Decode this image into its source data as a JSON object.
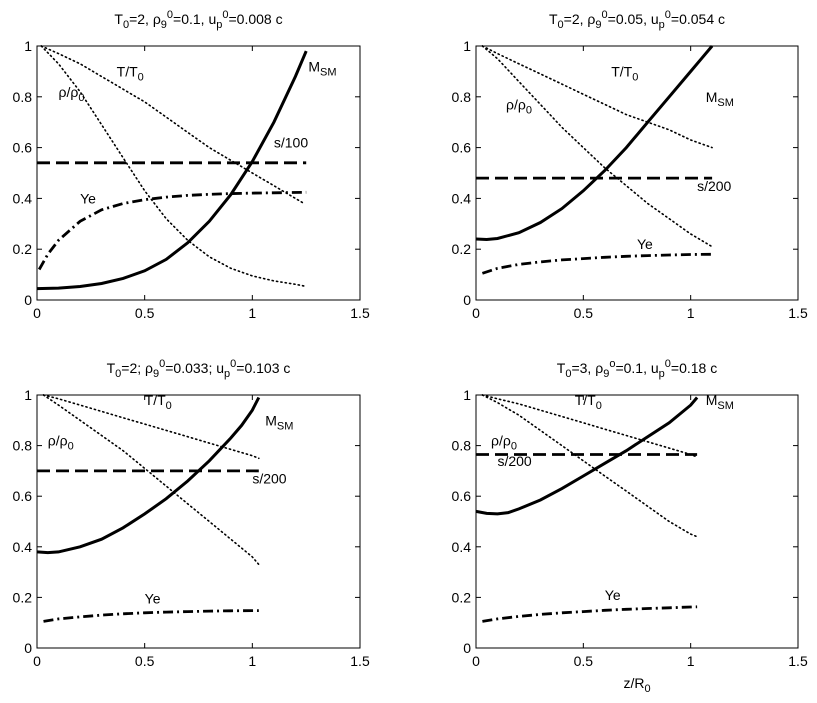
{
  "figure": {
    "xlabel": "z/R",
    "xlabel_sub": "0"
  },
  "chart_data": [
    {
      "type": "line",
      "title_parts": [
        {
          "t": "T"
        },
        {
          "t": "0",
          "sub": true
        },
        {
          "t": "=2,  ρ"
        },
        {
          "t": "9",
          "sub": true
        },
        {
          "t": "0",
          "sup": true
        },
        {
          "t": "=0.1,  u"
        },
        {
          "t": "p",
          "sub": true
        },
        {
          "t": "0",
          "sup": true
        },
        {
          "t": "=0.008 c"
        }
      ],
      "xlim": [
        0,
        1.5
      ],
      "ylim": [
        0,
        1
      ],
      "xticks": [
        "0",
        "0.5",
        "1",
        "1.5"
      ],
      "yticks": [
        "0",
        "0.2",
        "0.4",
        "0.6",
        "0.8",
        "1"
      ],
      "series": [
        {
          "name": "M_SM",
          "style": "solid",
          "x": [
            0,
            0.1,
            0.2,
            0.3,
            0.4,
            0.5,
            0.6,
            0.7,
            0.8,
            0.9,
            1.0,
            1.1,
            1.2,
            1.25
          ],
          "y": [
            0.045,
            0.047,
            0.053,
            0.065,
            0.085,
            0.115,
            0.16,
            0.225,
            0.31,
            0.415,
            0.545,
            0.7,
            0.88,
            0.98
          ]
        },
        {
          "name": "s/100",
          "style": "dashed",
          "x": [
            0,
            1.25
          ],
          "y": [
            0.54,
            0.54
          ]
        },
        {
          "name": "Ye",
          "style": "dashdot",
          "x": [
            0.01,
            0.05,
            0.1,
            0.2,
            0.3,
            0.4,
            0.5,
            0.6,
            0.7,
            0.8,
            0.9,
            1.0,
            1.1,
            1.25
          ],
          "y": [
            0.12,
            0.18,
            0.235,
            0.31,
            0.355,
            0.38,
            0.395,
            0.405,
            0.412,
            0.416,
            0.419,
            0.421,
            0.422,
            0.424
          ]
        },
        {
          "name": "T/T0",
          "style": "dotted",
          "x": [
            0.02,
            0.1,
            0.2,
            0.3,
            0.4,
            0.5,
            0.6,
            0.7,
            0.8,
            0.9,
            1.0,
            1.1,
            1.2,
            1.24
          ],
          "y": [
            1.0,
            0.97,
            0.93,
            0.88,
            0.83,
            0.78,
            0.72,
            0.66,
            0.6,
            0.55,
            0.5,
            0.45,
            0.4,
            0.38
          ]
        },
        {
          "name": "rho/rho0",
          "style": "dotted",
          "x": [
            0.02,
            0.1,
            0.2,
            0.3,
            0.4,
            0.5,
            0.6,
            0.7,
            0.8,
            0.9,
            1.0,
            1.1,
            1.2,
            1.24
          ],
          "y": [
            1.0,
            0.93,
            0.82,
            0.69,
            0.56,
            0.43,
            0.32,
            0.235,
            0.17,
            0.125,
            0.095,
            0.075,
            0.062,
            0.055
          ]
        }
      ],
      "annotations": [
        {
          "parts": [
            {
              "t": "M"
            },
            {
              "t": "SM",
              "sub": true
            }
          ],
          "x": 1.26,
          "y": 0.9
        },
        {
          "parts": [
            {
              "t": "T/T"
            },
            {
              "t": "0",
              "sub": true
            }
          ],
          "x": 0.37,
          "y": 0.88
        },
        {
          "parts": [
            {
              "t": "s/100"
            }
          ],
          "x": 1.1,
          "y": 0.6
        },
        {
          "parts": [
            {
              "t": "Ye"
            }
          ],
          "x": 0.2,
          "y": 0.38
        }
      ]
    },
    {
      "type": "line",
      "title_parts": [
        {
          "t": "T"
        },
        {
          "t": "0",
          "sub": true
        },
        {
          "t": "=2,  ρ"
        },
        {
          "t": "9",
          "sub": true
        },
        {
          "t": "0",
          "sup": true
        },
        {
          "t": "=0.05,  u"
        },
        {
          "t": "p",
          "sub": true
        },
        {
          "t": "0",
          "sup": true
        },
        {
          "t": "=0.054 c"
        }
      ],
      "xlim": [
        0,
        1.5
      ],
      "ylim": [
        0,
        1
      ],
      "xticks": [
        "0",
        "0.5",
        "1",
        "1.5"
      ],
      "yticks": [
        "0",
        "0.2",
        "0.4",
        "0.6",
        "0.8",
        "1"
      ],
      "series": [
        {
          "name": "M_SM",
          "style": "solid",
          "x": [
            0,
            0.05,
            0.1,
            0.2,
            0.3,
            0.4,
            0.5,
            0.6,
            0.7,
            0.8,
            0.9,
            1.0,
            1.05,
            1.1
          ],
          "y": [
            0.24,
            0.238,
            0.242,
            0.265,
            0.305,
            0.36,
            0.43,
            0.51,
            0.6,
            0.7,
            0.8,
            0.9,
            0.95,
            1.0
          ]
        },
        {
          "name": "s/200",
          "style": "dashed",
          "x": [
            0,
            1.1
          ],
          "y": [
            0.48,
            0.48
          ]
        },
        {
          "name": "Ye",
          "style": "dashdot",
          "x": [
            0.03,
            0.1,
            0.2,
            0.3,
            0.4,
            0.5,
            0.6,
            0.7,
            0.8,
            0.9,
            1.0,
            1.1
          ],
          "y": [
            0.105,
            0.125,
            0.14,
            0.15,
            0.158,
            0.163,
            0.168,
            0.172,
            0.175,
            0.177,
            0.179,
            0.18
          ]
        },
        {
          "name": "T/T0",
          "style": "dotted",
          "x": [
            0.03,
            0.1,
            0.2,
            0.3,
            0.4,
            0.5,
            0.6,
            0.7,
            0.8,
            0.9,
            1.0,
            1.1
          ],
          "y": [
            1.0,
            0.97,
            0.93,
            0.89,
            0.85,
            0.81,
            0.77,
            0.73,
            0.7,
            0.67,
            0.63,
            0.6
          ]
        },
        {
          "name": "rho/rho0",
          "style": "dotted",
          "x": [
            0.03,
            0.1,
            0.2,
            0.3,
            0.4,
            0.5,
            0.6,
            0.7,
            0.8,
            0.9,
            1.0,
            1.1
          ],
          "y": [
            1.0,
            0.95,
            0.86,
            0.77,
            0.68,
            0.6,
            0.52,
            0.45,
            0.38,
            0.32,
            0.26,
            0.21
          ]
        }
      ],
      "annotations": [
        {
          "parts": [
            {
              "t": "M"
            },
            {
              "t": "SM",
              "sub": true
            }
          ],
          "x": 1.07,
          "y": 0.78
        },
        {
          "parts": [
            {
              "t": "T/T"
            },
            {
              "t": "0",
              "sub": true
            }
          ],
          "x": 0.63,
          "y": 0.88
        },
        {
          "parts": [
            {
              "t": "s/200"
            }
          ],
          "x": 1.03,
          "y": 0.43
        },
        {
          "parts": [
            {
              "t": "Ye"
            }
          ],
          "x": 0.75,
          "y": 0.2
        }
      ]
    },
    {
      "type": "line",
      "title_parts": [
        {
          "t": "T"
        },
        {
          "t": "0",
          "sub": true
        },
        {
          "t": "=2;  ρ"
        },
        {
          "t": "9",
          "sub": true
        },
        {
          "t": "0",
          "sup": true
        },
        {
          "t": "=0.033;  u"
        },
        {
          "t": "p",
          "sub": true
        },
        {
          "t": "0",
          "sup": true
        },
        {
          "t": "=0.103 c"
        }
      ],
      "xlim": [
        0,
        1.5
      ],
      "ylim": [
        0,
        1
      ],
      "xticks": [
        "0",
        "0.5",
        "1",
        "1.5"
      ],
      "yticks": [
        "0",
        "0.2",
        "0.4",
        "0.6",
        "0.8",
        "1"
      ],
      "series": [
        {
          "name": "M_SM",
          "style": "solid",
          "x": [
            0,
            0.05,
            0.1,
            0.2,
            0.3,
            0.4,
            0.5,
            0.6,
            0.7,
            0.8,
            0.9,
            0.95,
            1.0,
            1.03
          ],
          "y": [
            0.38,
            0.377,
            0.38,
            0.4,
            0.43,
            0.475,
            0.53,
            0.59,
            0.66,
            0.74,
            0.83,
            0.88,
            0.94,
            0.99
          ]
        },
        {
          "name": "s/200",
          "style": "dashed",
          "x": [
            0,
            1.03
          ],
          "y": [
            0.7,
            0.7
          ]
        },
        {
          "name": "Ye",
          "style": "dashdot",
          "x": [
            0.03,
            0.1,
            0.2,
            0.3,
            0.4,
            0.5,
            0.6,
            0.7,
            0.8,
            0.9,
            1.0,
            1.03
          ],
          "y": [
            0.105,
            0.115,
            0.123,
            0.13,
            0.135,
            0.139,
            0.142,
            0.144,
            0.146,
            0.147,
            0.148,
            0.148
          ]
        },
        {
          "name": "T/T0",
          "style": "dotted",
          "x": [
            0.03,
            0.1,
            0.2,
            0.3,
            0.4,
            0.5,
            0.6,
            0.7,
            0.8,
            0.9,
            1.0,
            1.03
          ],
          "y": [
            1.0,
            0.985,
            0.96,
            0.935,
            0.91,
            0.885,
            0.86,
            0.835,
            0.81,
            0.785,
            0.76,
            0.75
          ]
        },
        {
          "name": "rho/rho0",
          "style": "dotted",
          "x": [
            0.03,
            0.1,
            0.2,
            0.3,
            0.4,
            0.5,
            0.6,
            0.7,
            0.8,
            0.9,
            1.0,
            1.03
          ],
          "y": [
            1.0,
            0.96,
            0.9,
            0.84,
            0.78,
            0.71,
            0.64,
            0.57,
            0.5,
            0.43,
            0.36,
            0.33
          ]
        }
      ],
      "annotations": [
        {
          "parts": [
            {
              "t": "M"
            },
            {
              "t": "SM",
              "sub": true
            }
          ],
          "x": 1.06,
          "y": 0.88
        },
        {
          "parts": [
            {
              "t": "T/T"
            },
            {
              "t": "0",
              "sub": true
            }
          ],
          "x": 0.5,
          "y": 0.96
        },
        {
          "parts": [
            {
              "t": "s/200"
            }
          ],
          "x": 1.0,
          "y": 0.65
        },
        {
          "parts": [
            {
              "t": "Ye"
            }
          ],
          "x": 0.5,
          "y": 0.175
        }
      ]
    },
    {
      "type": "line",
      "title_parts": [
        {
          "t": "T"
        },
        {
          "t": "0",
          "sub": true
        },
        {
          "t": "=3,  ρ"
        },
        {
          "t": "9",
          "sub": true
        },
        {
          "t": "o",
          "sup": true
        },
        {
          "t": "=0.1,  u"
        },
        {
          "t": "p",
          "sub": true
        },
        {
          "t": "0",
          "sup": true
        },
        {
          "t": "=0.18 c"
        }
      ],
      "xlim": [
        0,
        1.5
      ],
      "ylim": [
        0,
        1
      ],
      "xticks": [
        "0",
        "0.5",
        "1",
        "1.5"
      ],
      "yticks": [
        "0",
        "0.2",
        "0.4",
        "0.6",
        "0.8",
        "1"
      ],
      "series": [
        {
          "name": "M_SM",
          "style": "solid",
          "x": [
            0,
            0.05,
            0.1,
            0.15,
            0.2,
            0.3,
            0.4,
            0.5,
            0.6,
            0.7,
            0.8,
            0.9,
            1.0,
            1.03
          ],
          "y": [
            0.54,
            0.532,
            0.53,
            0.535,
            0.55,
            0.585,
            0.63,
            0.68,
            0.73,
            0.78,
            0.835,
            0.89,
            0.96,
            0.99
          ]
        },
        {
          "name": "s/200",
          "style": "dashed",
          "x": [
            0,
            1.03
          ],
          "y": [
            0.765,
            0.765
          ]
        },
        {
          "name": "Ye",
          "style": "dashdot",
          "x": [
            0.03,
            0.1,
            0.2,
            0.3,
            0.4,
            0.5,
            0.6,
            0.7,
            0.8,
            0.9,
            1.0,
            1.03
          ],
          "y": [
            0.105,
            0.115,
            0.125,
            0.133,
            0.139,
            0.144,
            0.149,
            0.153,
            0.156,
            0.159,
            0.162,
            0.163
          ]
        },
        {
          "name": "T/T0",
          "style": "dotted",
          "x": [
            0.03,
            0.1,
            0.2,
            0.3,
            0.4,
            0.5,
            0.6,
            0.7,
            0.8,
            0.9,
            1.0,
            1.03
          ],
          "y": [
            1.0,
            0.985,
            0.965,
            0.94,
            0.915,
            0.89,
            0.865,
            0.84,
            0.815,
            0.79,
            0.765,
            0.755
          ]
        },
        {
          "name": "rho/rho0",
          "style": "dotted",
          "x": [
            0.03,
            0.1,
            0.2,
            0.3,
            0.4,
            0.5,
            0.6,
            0.7,
            0.8,
            0.9,
            1.0,
            1.03
          ],
          "y": [
            1.0,
            0.97,
            0.92,
            0.86,
            0.8,
            0.74,
            0.68,
            0.62,
            0.56,
            0.5,
            0.45,
            0.44
          ]
        }
      ],
      "annotations": [
        {
          "parts": [
            {
              "t": "M"
            },
            {
              "t": "SM",
              "sub": true
            }
          ],
          "x": 1.07,
          "y": 0.96
        },
        {
          "parts": [
            {
              "t": "T/T"
            },
            {
              "t": "0",
              "sub": true
            }
          ],
          "x": 0.46,
          "y": 0.96
        },
        {
          "parts": [
            {
              "t": "s/200"
            }
          ],
          "x": 0.1,
          "y": 0.72
        },
        {
          "parts": [
            {
              "t": "Ye"
            }
          ],
          "x": 0.6,
          "y": 0.19
        }
      ]
    }
  ]
}
